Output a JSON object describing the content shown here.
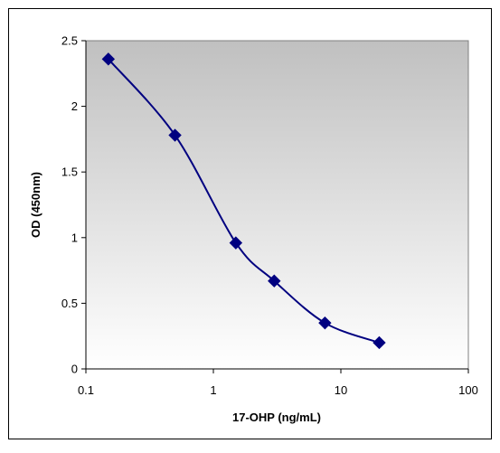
{
  "chart_data": {
    "type": "scatter",
    "title": "",
    "xlabel": "17-OHP (ng/mL)",
    "ylabel": "OD (450nm)",
    "x_scale": "log",
    "xlim": [
      0.1,
      100
    ],
    "ylim": [
      0,
      2.5
    ],
    "x_ticks": [
      "0.1",
      "1",
      "10",
      "100"
    ],
    "y_ticks": [
      "0",
      "0.5",
      "1",
      "1.5",
      "2",
      "2.5"
    ],
    "grid": false,
    "legend": "none",
    "series": [
      {
        "x": [
          0.15,
          0.5,
          1.5,
          3,
          7.5,
          20
        ],
        "y": [
          2.36,
          1.78,
          0.96,
          0.67,
          0.35,
          0.2
        ],
        "marker": "diamond",
        "line": "smooth",
        "color": "#000080"
      }
    ],
    "colors": {
      "series": "#000080",
      "plot_bg_top": "#c0c0c0",
      "plot_bg_bottom": "#ffffff",
      "frame": "#000000"
    }
  }
}
